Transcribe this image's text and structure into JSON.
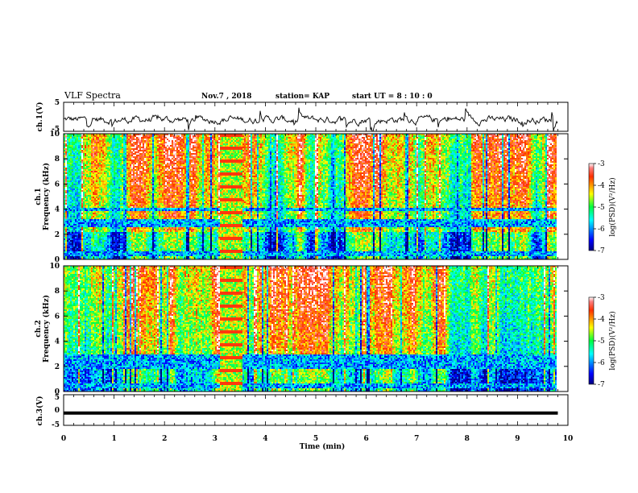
{
  "header": {
    "title": "VLF Spectra",
    "date": "Nov.7 , 2018",
    "station": "station= KAP",
    "start": "start UT =  8 : 10 : 0"
  },
  "chart_data": [
    {
      "type": "line",
      "ylabel": "ch.1(V)",
      "ylim": [
        -5,
        5
      ],
      "yticks": [
        "5",
        "-5"
      ],
      "xlim": [
        0,
        10
      ],
      "series": [
        {
          "description": "noisy waveform around -1 V",
          "mean": -1,
          "amplitude": 1.5
        }
      ]
    },
    {
      "type": "heatmap",
      "ylabel": "ch.1 Frequency (kHz)",
      "ylim": [
        0,
        10
      ],
      "yticks": [
        "10",
        "8",
        "6",
        "4",
        "2",
        "0"
      ],
      "xlim": [
        0,
        10
      ],
      "data_xmax": 9.8,
      "colorbar": {
        "label": "log(PSD)(V²/Hz)",
        "ticks": [
          "-3",
          "-4",
          "-5",
          "-6",
          "-7"
        ],
        "range": [
          -7,
          -3
        ]
      },
      "blue_bands_khz": [
        [
          2.6,
          3.2
        ],
        [
          3.9,
          4.1
        ],
        [
          0.3,
          0.6
        ]
      ],
      "burst_interval_min": [
        3.1,
        3.55
      ]
    },
    {
      "type": "heatmap",
      "ylabel": "ch.2 Frequency (kHz)",
      "ylim": [
        0,
        10
      ],
      "yticks": [
        "10",
        "8",
        "6",
        "4",
        "2",
        "0"
      ],
      "xlim": [
        0,
        10
      ],
      "data_xmax": 9.8,
      "colorbar": {
        "label": "log(PSD)(V²/Hz)",
        "ticks": [
          "-3",
          "-4",
          "-5",
          "-6",
          "-7"
        ],
        "range": [
          -7,
          -3
        ]
      },
      "blue_bands_khz": [
        [
          1.8,
          3.0
        ],
        [
          0.2,
          0.6
        ]
      ],
      "burst_interval_min": [
        3.1,
        3.55
      ]
    },
    {
      "type": "line",
      "ylabel": "ch.3(V)",
      "ylim": [
        -5,
        5
      ],
      "yticks": [
        "5",
        "0",
        "-5"
      ],
      "xlim": [
        0,
        10
      ],
      "series": [
        {
          "description": "flat line",
          "value": -1
        }
      ]
    }
  ],
  "xaxis": {
    "label": "Time  (min)",
    "ticks": [
      "0",
      "1",
      "2",
      "3",
      "4",
      "5",
      "6",
      "7",
      "8",
      "9",
      "10"
    ]
  }
}
